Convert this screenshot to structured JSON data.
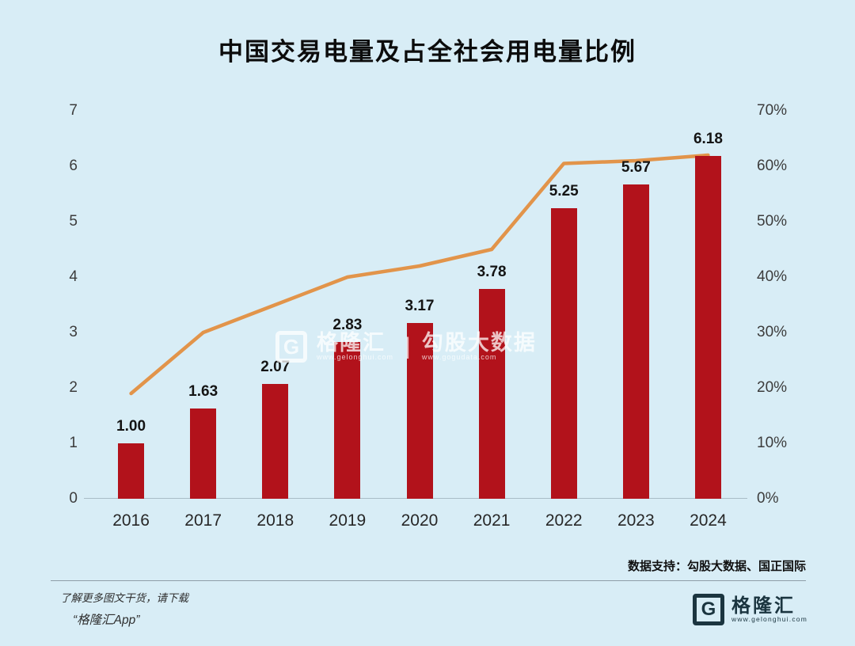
{
  "title": "中国交易电量及占全社会用电量比例",
  "chart_data": {
    "type": "bar",
    "title": "中国交易电量及占全社会用电量比例",
    "categories": [
      "2016",
      "2017",
      "2018",
      "2019",
      "2020",
      "2021",
      "2022",
      "2023",
      "2024"
    ],
    "series": [
      {
        "name": "交易电量",
        "type": "bar",
        "axis": "left",
        "color": "#b2121b",
        "values": [
          1.0,
          1.63,
          2.07,
          2.83,
          3.17,
          3.78,
          5.25,
          5.67,
          6.18
        ],
        "labels": [
          "1.00",
          "1.63",
          "2.07",
          "2.83",
          "3.17",
          "3.78",
          "5.25",
          "5.67",
          "6.18"
        ]
      },
      {
        "name": "占全社会用电量比例",
        "type": "line",
        "axis": "right",
        "color": "#e2944a",
        "values": [
          19,
          30,
          35,
          40,
          42,
          45,
          60.5,
          61,
          62
        ]
      }
    ],
    "left_axis": {
      "min": 0,
      "max": 7,
      "ticks": [
        "0",
        "1",
        "2",
        "3",
        "4",
        "5",
        "6",
        "7"
      ]
    },
    "right_axis": {
      "min": 0,
      "max": 70,
      "ticks": [
        "0%",
        "10%",
        "20%",
        "30%",
        "40%",
        "50%",
        "60%",
        "70%"
      ]
    },
    "grid": false,
    "legend": false
  },
  "watermark": {
    "g": "G",
    "brand": "格隆汇",
    "brand_url": "www.gelonghui.com",
    "separator": "|",
    "partner": "勾股大数据",
    "partner_url": "www.gogudata.com"
  },
  "footer": {
    "data_support": "数据支持：勾股大数据、国正国际",
    "promo_line1": "了解更多图文干货，请下载",
    "promo_line2": "“格隆汇App”",
    "logo_g": "G",
    "logo_text": "格隆汇",
    "logo_url": "www.gelonghui.com"
  },
  "colors": {
    "background": "#d8edf6",
    "bar": "#b2121b",
    "line": "#e2944a"
  }
}
